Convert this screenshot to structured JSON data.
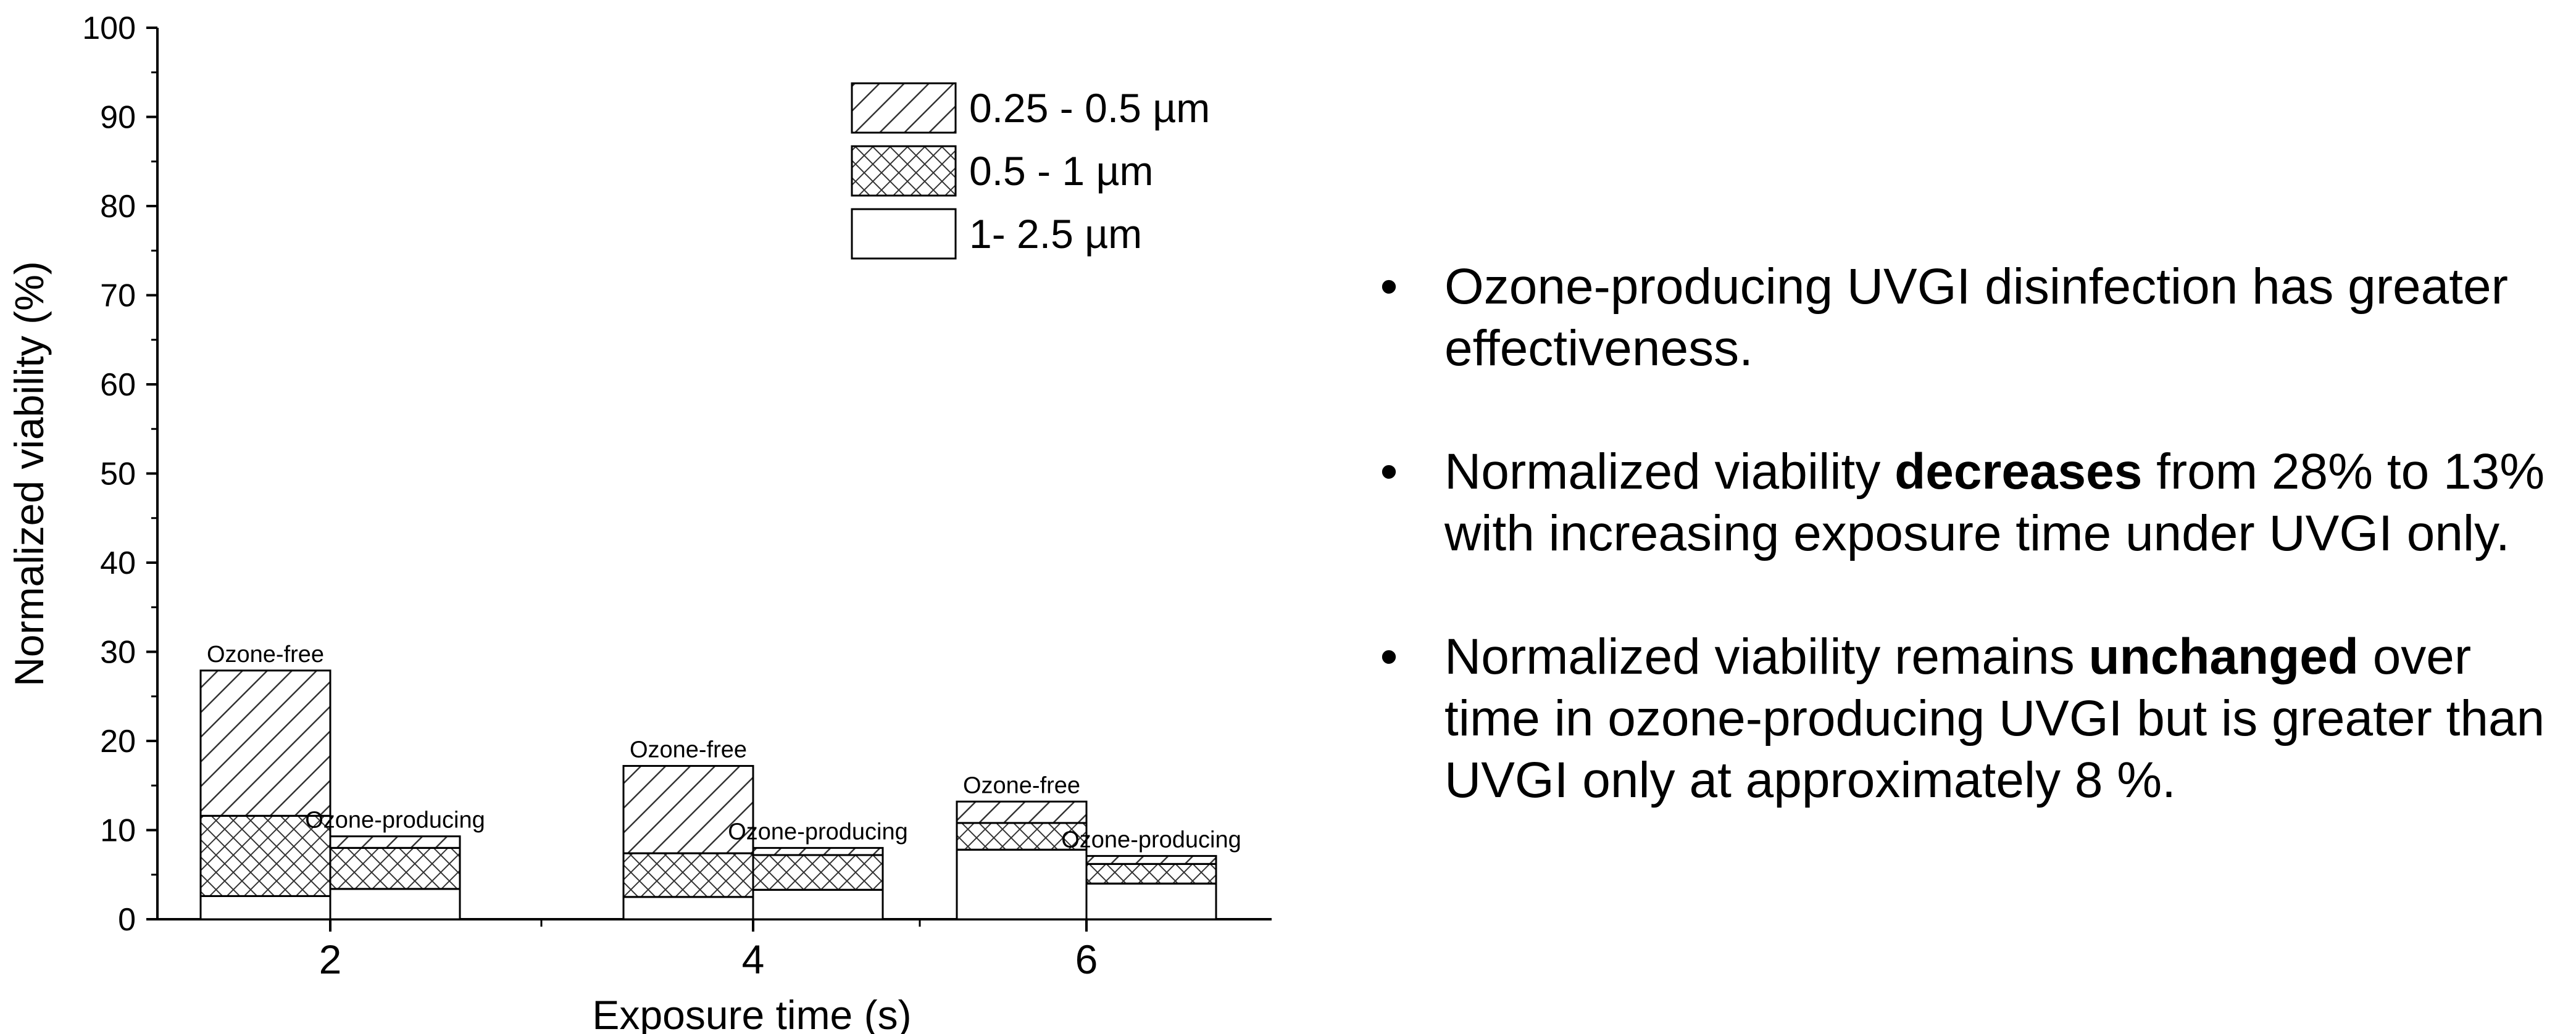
{
  "chart_data": {
    "type": "bar",
    "subtype": "grouped-stacked",
    "xlabel": "Exposure time (s)",
    "ylabel": "Normalized viability (%)",
    "ylim": [
      0,
      100
    ],
    "yticks": [
      0,
      10,
      20,
      30,
      40,
      50,
      60,
      70,
      80,
      90,
      100
    ],
    "categories": [
      "2",
      "4",
      "6"
    ],
    "groups": [
      "Ozone-free",
      "Ozone-producing"
    ],
    "stack_order": [
      "1- 2.5 µm",
      "0.5 - 1 µm",
      "0.25 - 0.5 µm"
    ],
    "legend": {
      "placement": "top-center",
      "entries": [
        {
          "label": "0.25 - 0.5 µm",
          "pattern": "diagonal-hatch"
        },
        {
          "label": "0.5 - 1 µm",
          "pattern": "cross-hatch"
        },
        {
          "label": "1- 2.5 µm",
          "pattern": "empty"
        }
      ]
    },
    "series": [
      {
        "name": "1- 2.5 µm",
        "ozone_free": [
          2.6,
          2.5,
          7.8
        ],
        "ozone_producing": [
          3.4,
          3.3,
          4.0
        ]
      },
      {
        "name": "0.5 - 1 µm",
        "ozone_free": [
          9.0,
          4.9,
          3.0
        ],
        "ozone_producing": [
          4.6,
          3.9,
          2.2
        ]
      },
      {
        "name": "0.25 - 0.5 µm",
        "ozone_free": [
          16.3,
          9.8,
          2.4
        ],
        "ozone_producing": [
          1.3,
          0.8,
          0.9
        ]
      }
    ],
    "grid": false
  },
  "bullets": [
    {
      "pre": "Ozone-producing UVGI disinfection has greater effectiveness.",
      "bold": "",
      "post": ""
    },
    {
      "pre": "Normalized viability ",
      "bold": "decreases",
      "post": " from 28% to 13% with increasing exposure time under UVGI only."
    },
    {
      "pre": "Normalized viability remains ",
      "bold": "unchanged",
      "post": " over time in ozone-producing UVGI but is greater than UVGI only at approximately 8 %."
    }
  ],
  "bullet_symbol": "•"
}
